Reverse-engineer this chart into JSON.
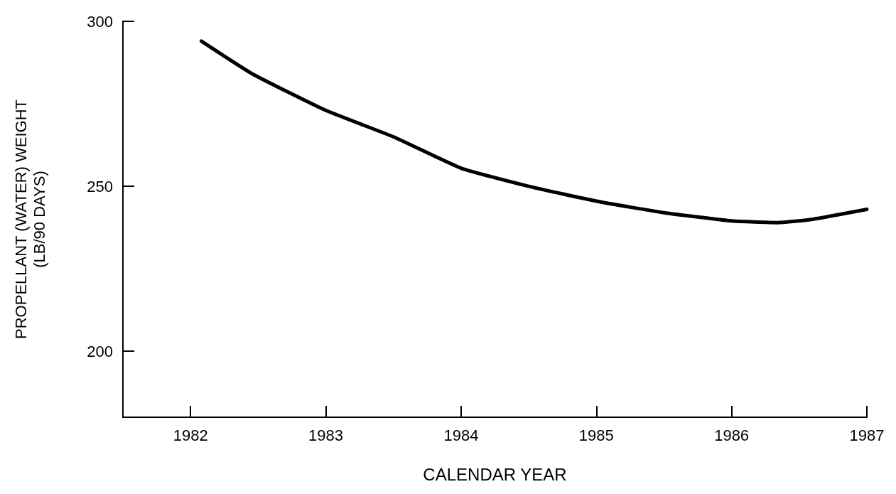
{
  "chart_data": {
    "type": "line",
    "xlabel": "CALENDAR YEAR",
    "ylabel": "PROPELLANT (WATER) WEIGHT\n(LB/90 DAYS)",
    "series": [
      {
        "color": "#000000",
        "x": [
          1982.08,
          1982.46,
          1983,
          1983.5,
          1984,
          1984.5,
          1985,
          1985.5,
          1986,
          1986.34,
          1986.6,
          1987
        ],
        "values": [
          294,
          284,
          273,
          265,
          255.5,
          250,
          245.5,
          242,
          239.5,
          239,
          240,
          243
        ]
      }
    ],
    "xlim": [
      1981.5,
      1987
    ],
    "xticks": [
      1982,
      1983,
      1984,
      1985,
      1986,
      1987
    ],
    "ylim": [
      180,
      300
    ],
    "yticks": [
      200,
      250,
      300
    ],
    "grid": false,
    "marker": "none",
    "line_style": "solid"
  }
}
